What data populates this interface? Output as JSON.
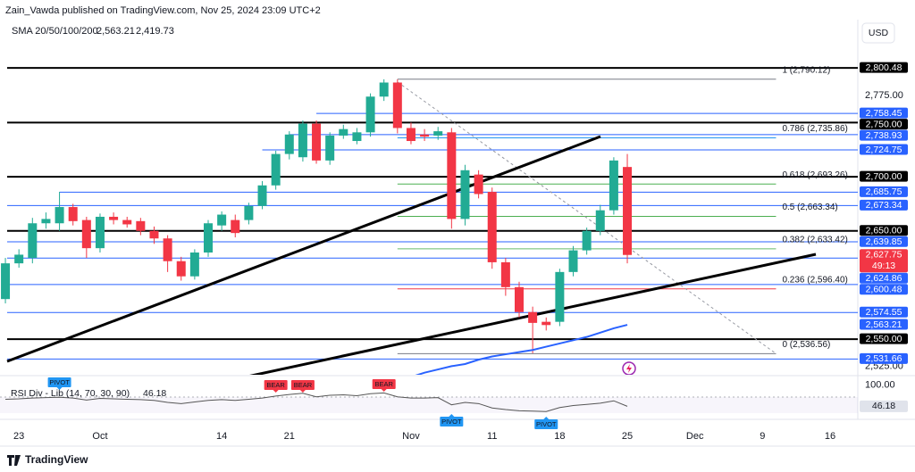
{
  "header": {
    "published": "Zain_Vawda published on TradingView.com, Nov 25, 2024 23:09 UTC+2",
    "currency": "USD"
  },
  "footer": {
    "brand": "TradingView"
  },
  "chart_data": {
    "type": "candlestick",
    "up_color": "#22ab94",
    "down_color": "#f23645",
    "xlim": [
      -0.4,
      63.05
    ],
    "xticks": [
      {
        "value": 1,
        "label": "23"
      },
      {
        "value": 7,
        "label": "Oct"
      },
      {
        "value": 16,
        "label": "14"
      },
      {
        "value": 21,
        "label": "21"
      },
      {
        "value": 30,
        "label": "Nov"
      },
      {
        "value": 36,
        "label": "11"
      },
      {
        "value": 41,
        "label": "18"
      },
      {
        "value": 46,
        "label": "25"
      },
      {
        "value": 51,
        "label": "Dec"
      },
      {
        "value": 56,
        "label": "9"
      },
      {
        "value": 61,
        "label": "16"
      }
    ],
    "ylim": [
      2517.1,
      2845.1
    ],
    "yticks": [
      {
        "value": 2775,
        "label": "2,775.00"
      },
      {
        "value": 2525,
        "label": "2,525.00"
      }
    ],
    "open": [
      2587,
      2620,
      2625,
      2657,
      2657,
      2672,
      2660,
      2634,
      2663,
      2660,
      2659,
      2650,
      2643,
      2622,
      2608,
      2630,
      2655,
      2660,
      2660,
      2673,
      2692,
      2721,
      2718,
      2749,
      2715,
      2738,
      2733,
      2741,
      2774,
      2787,
      2745,
      2739,
      2738,
      2741,
      2661,
      2702,
      2686,
      2621,
      2598,
      2575,
      2566,
      2566,
      2612,
      2632,
      2650,
      2669,
      2709
    ],
    "high": [
      2625,
      2633,
      2662,
      2667,
      2686,
      2675,
      2663,
      2666,
      2667,
      2663,
      2662,
      2654,
      2646,
      2626,
      2633,
      2660,
      2668,
      2665,
      2676,
      2696,
      2724,
      2742,
      2752,
      2752,
      2741,
      2748,
      2745,
      2777,
      2790,
      2790,
      2750,
      2744,
      2746,
      2745,
      2711,
      2706,
      2690,
      2625,
      2603,
      2580,
      2570,
      2615,
      2636,
      2653,
      2674,
      2718,
      2721
    ],
    "low": [
      2583,
      2616,
      2620,
      2652,
      2650,
      2655,
      2625,
      2630,
      2656,
      2653,
      2646,
      2638,
      2612,
      2604,
      2605,
      2626,
      2650,
      2644,
      2656,
      2670,
      2688,
      2716,
      2714,
      2712,
      2711,
      2735,
      2730,
      2737,
      2770,
      2740,
      2730,
      2733,
      2734,
      2652,
      2655,
      2680,
      2615,
      2590,
      2570,
      2537,
      2558,
      2562,
      2608,
      2628,
      2646,
      2665,
      2620
    ],
    "close": [
      2620,
      2628,
      2657,
      2661,
      2672,
      2659,
      2634,
      2663,
      2660,
      2656,
      2650,
      2643,
      2622,
      2608,
      2630,
      2657,
      2665,
      2648,
      2673,
      2692,
      2721,
      2739,
      2749,
      2715,
      2738,
      2744,
      2741,
      2774,
      2787,
      2745,
      2733,
      2737,
      2742,
      2661,
      2706,
      2684,
      2621,
      2598,
      2575,
      2565,
      2563,
      2612,
      2632,
      2650,
      2669,
      2715,
      2627.75
    ],
    "last_price": {
      "value": 2627.75,
      "label": "2,627.75",
      "countdown": "49:13"
    },
    "sma": {
      "name": "SMA 20/50/100/200",
      "color": "#2962ff",
      "values": [
        null,
        null,
        null,
        null,
        null,
        null,
        null,
        null,
        null,
        null,
        null,
        null,
        null,
        null,
        null,
        null,
        null,
        null,
        null,
        null,
        null,
        null,
        null,
        null,
        null,
        null,
        null,
        null,
        null,
        2512,
        2515,
        2519,
        2522,
        2525,
        2527,
        2531,
        2534,
        2536,
        2538,
        2540,
        2543,
        2546,
        2549,
        2552,
        2556,
        2560,
        2563.21
      ],
      "value_labels": [
        null,
        null,
        null,
        null,
        null,
        null,
        null,
        null,
        null,
        null,
        null,
        null,
        null,
        null,
        null,
        null,
        null,
        null,
        null,
        null,
        null,
        null,
        null,
        null,
        null,
        null,
        null,
        null,
        null,
        null,
        null,
        null,
        null,
        null,
        null,
        null,
        null,
        null,
        null,
        null,
        null,
        null,
        null,
        null,
        null,
        null,
        "2,563.21"
      ]
    },
    "sma2": {
      "label": "2,419.73",
      "color": "#f7a21b"
    },
    "levels": [
      {
        "value": 2800.48,
        "label": "2,800.48",
        "color": "#000000"
      },
      {
        "value": 2758.45,
        "label": "2,758.45",
        "color": "#2962ff"
      },
      {
        "value": 2750,
        "label": "2,750.00",
        "color": "#000000"
      },
      {
        "value": 2738.93,
        "label": "2,738.93",
        "color": "#2962ff"
      },
      {
        "value": 2724.75,
        "label": "2,724.75",
        "color": "#2962ff"
      },
      {
        "value": 2700,
        "label": "2,700.00",
        "color": "#000000"
      },
      {
        "value": 2685.75,
        "label": "2,685.75",
        "color": "#2962ff"
      },
      {
        "value": 2673.34,
        "label": "2,673.34",
        "color": "#2962ff"
      },
      {
        "value": 2650,
        "label": "2,650.00",
        "color": "#000000"
      },
      {
        "value": 2639.85,
        "label": "2,639.85",
        "color": "#2962ff"
      },
      {
        "value": 2624.86,
        "label": "2,624.86",
        "color": "#2962ff"
      },
      {
        "value": 2600.48,
        "label": "2,600.48",
        "color": "#2962ff"
      },
      {
        "value": 2574.55,
        "label": "2,574.55",
        "color": "#2962ff"
      },
      {
        "value": 2550,
        "label": "2,550.00",
        "color": "#000000"
      },
      {
        "value": 2531.66,
        "label": "2,531.66",
        "color": "#2962ff"
      }
    ],
    "fib": [
      {
        "value": 2790.12,
        "label": "1 (2,790.12)",
        "color": "#787b86"
      },
      {
        "value": 2735.86,
        "label": "0.786 (2,735.86)",
        "color": "#2196f3"
      },
      {
        "value": 2693.26,
        "label": "0.618 (2,693.26)",
        "color": "#4caf50"
      },
      {
        "value": 2663.34,
        "label": "0.5 (2,663.34)",
        "color": "#4caf50"
      },
      {
        "value": 2633.42,
        "label": "0.382 (2,633.42)",
        "color": "#66bb6a"
      },
      {
        "value": 2596.4,
        "label": "0.236 (2,596.40)",
        "color": "#f23645"
      },
      {
        "value": 2536.56,
        "label": "0 (2,536.56)",
        "color": "#787b86"
      }
    ],
    "rsi": {
      "name": "RSI Div - Lib (14, 70, 30, 90)",
      "color": "#555555",
      "ylim": [
        20,
        119
      ],
      "yticks": [
        {
          "value": 100,
          "label": "100.00"
        }
      ],
      "values": [
        64,
        65,
        67,
        68,
        69,
        67,
        62,
        66,
        65,
        64,
        63,
        61,
        56,
        53,
        57,
        61,
        63,
        61,
        64,
        67,
        72,
        76,
        79,
        70,
        74,
        75,
        73,
        78,
        80,
        70,
        67,
        67,
        68,
        50,
        56,
        53,
        42,
        38,
        35,
        34,
        33,
        43,
        48,
        51,
        54,
        60,
        46.18
      ],
      "signals": [
        {
          "label": "PIVOT",
          "color": "#2196f3"
        },
        {
          "label": "BEAR",
          "color": "#f23645"
        },
        {
          "label": "BEAR",
          "color": "#f23645"
        },
        {
          "label": "BEAR",
          "color": "#f23645"
        },
        {
          "label": "PIVOT",
          "color": "#2196f3"
        },
        {
          "label": "PIVOT",
          "color": "#2196f3"
        }
      ]
    }
  }
}
